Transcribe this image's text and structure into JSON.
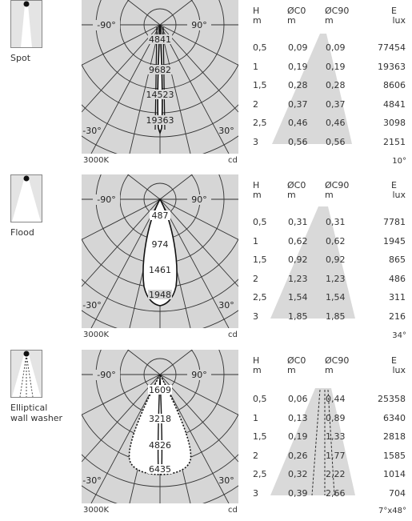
{
  "table_headers": {
    "h": "H",
    "h_unit": "m",
    "c0": "ØC0",
    "c0_unit": "m",
    "c90": "ØC90",
    "c90_unit": "m",
    "e": "E",
    "e_unit": "lux"
  },
  "polar_labels": {
    "neg90": "-90°",
    "pos90": "90°",
    "neg30": "-30°",
    "pos30": "30°"
  },
  "sections": [
    {
      "name": "Spot",
      "color_temp": "3000K",
      "unit": "cd",
      "beam_angle": "10°",
      "intensity_labels": [
        "4841",
        "9682",
        "14523",
        "19363"
      ],
      "rows": [
        {
          "h": "0,5",
          "c0": "0,09",
          "c90": "0,09",
          "e": "77454"
        },
        {
          "h": "1",
          "c0": "0,19",
          "c90": "0,19",
          "e": "19363"
        },
        {
          "h": "1,5",
          "c0": "0,28",
          "c90": "0,28",
          "e": "8606"
        },
        {
          "h": "2",
          "c0": "0,37",
          "c90": "0,37",
          "e": "4841"
        },
        {
          "h": "2,5",
          "c0": "0,46",
          "c90": "0,46",
          "e": "3098"
        },
        {
          "h": "3",
          "c0": "0,56",
          "c90": "0,56",
          "e": "2151"
        }
      ]
    },
    {
      "name": "Flood",
      "color_temp": "3000K",
      "unit": "cd",
      "beam_angle": "34°",
      "intensity_labels": [
        "487",
        "974",
        "1461",
        "1948"
      ],
      "rows": [
        {
          "h": "0,5",
          "c0": "0,31",
          "c90": "0,31",
          "e": "7781"
        },
        {
          "h": "1",
          "c0": "0,62",
          "c90": "0,62",
          "e": "1945"
        },
        {
          "h": "1,5",
          "c0": "0,92",
          "c90": "0,92",
          "e": "865"
        },
        {
          "h": "2",
          "c0": "1,23",
          "c90": "1,23",
          "e": "486"
        },
        {
          "h": "2,5",
          "c0": "1,54",
          "c90": "1,54",
          "e": "311"
        },
        {
          "h": "3",
          "c0": "1,85",
          "c90": "1,85",
          "e": "216"
        }
      ]
    },
    {
      "name": "Elliptical\nwall washer",
      "color_temp": "3000K",
      "unit": "cd",
      "beam_angle": "7°x48°",
      "intensity_labels": [
        "1609",
        "3218",
        "4826",
        "6435"
      ],
      "rows": [
        {
          "h": "0,5",
          "c0": "0,06",
          "c90": "0,44",
          "e": "25358"
        },
        {
          "h": "1",
          "c0": "0,13",
          "c90": "0,89",
          "e": "6340"
        },
        {
          "h": "1,5",
          "c0": "0,19",
          "c90": "1,33",
          "e": "2818"
        },
        {
          "h": "2",
          "c0": "0,26",
          "c90": "1,77",
          "e": "1585"
        },
        {
          "h": "2,5",
          "c0": "0,32",
          "c90": "2,22",
          "e": "1014"
        },
        {
          "h": "3",
          "c0": "0,39",
          "c90": "2,66",
          "e": "704"
        }
      ]
    }
  ]
}
